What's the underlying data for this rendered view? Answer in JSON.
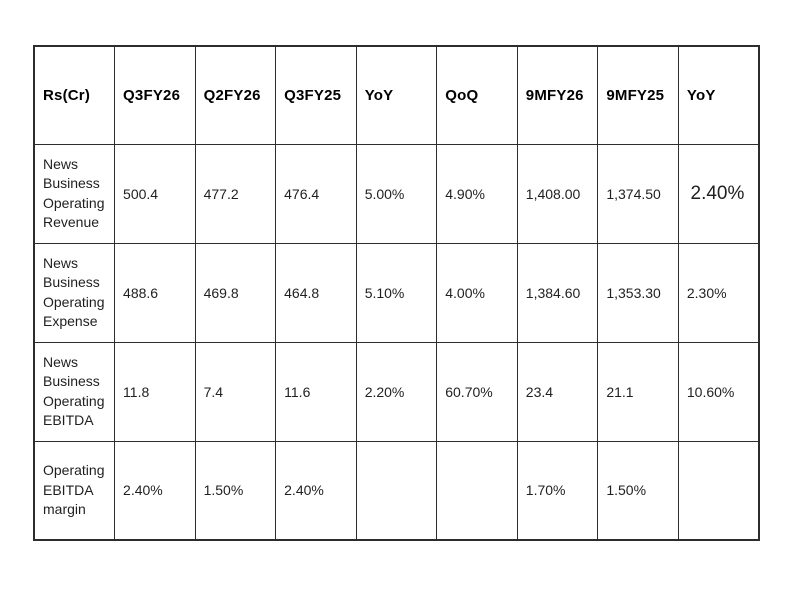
{
  "colors": {
    "background": "#ffffff",
    "border": "#2d2d2d",
    "header_text": "#000000",
    "body_text": "#1f1f1f"
  },
  "table": {
    "columns": [
      "Rs(Cr)",
      "Q3FY26",
      "Q2FY26",
      "Q3FY25",
      "YoY",
      "QoQ",
      "9MFY26",
      "9MFY25",
      "YoY"
    ],
    "rows": [
      {
        "label": "News Business Operating Revenue",
        "values": [
          "500.4",
          "477.2",
          "476.4",
          "5.00%",
          "4.90%",
          "1,408.00",
          "1,374.50",
          "2.40%"
        ]
      },
      {
        "label": "News Business Operating Expense",
        "values": [
          "488.6",
          "469.8",
          "464.8",
          "5.10%",
          "4.00%",
          "1,384.60",
          "1,353.30",
          "2.30%"
        ]
      },
      {
        "label": "News Business Operating EBITDA",
        "values": [
          "11.8",
          "7.4",
          "11.6",
          "2.20%",
          "60.70%",
          "23.4",
          "21.1",
          "10.60%"
        ]
      },
      {
        "label": "Operating EBITDA margin",
        "values": [
          "2.40%",
          "1.50%",
          "2.40%",
          "",
          "",
          "1.70%",
          "1.50%",
          ""
        ]
      }
    ]
  },
  "chart_data": {
    "type": "table",
    "columns": [
      "Rs(Cr)",
      "Q3FY26",
      "Q2FY26",
      "Q3FY25",
      "YoY",
      "QoQ",
      "9MFY26",
      "9MFY25",
      "YoY"
    ],
    "rows": [
      [
        "News Business Operating Revenue",
        500.4,
        477.2,
        476.4,
        "5.00%",
        "4.90%",
        1408.0,
        1374.5,
        "2.40%"
      ],
      [
        "News Business Operating Expense",
        488.6,
        469.8,
        464.8,
        "5.10%",
        "4.00%",
        1384.6,
        1353.3,
        "2.30%"
      ],
      [
        "News Business Operating EBITDA",
        11.8,
        7.4,
        11.6,
        "2.20%",
        "60.70%",
        23.4,
        21.1,
        "10.60%"
      ],
      [
        "Operating EBITDA margin",
        "2.40%",
        "1.50%",
        "2.40%",
        "",
        "",
        "1.70%",
        "1.50%",
        ""
      ]
    ]
  }
}
